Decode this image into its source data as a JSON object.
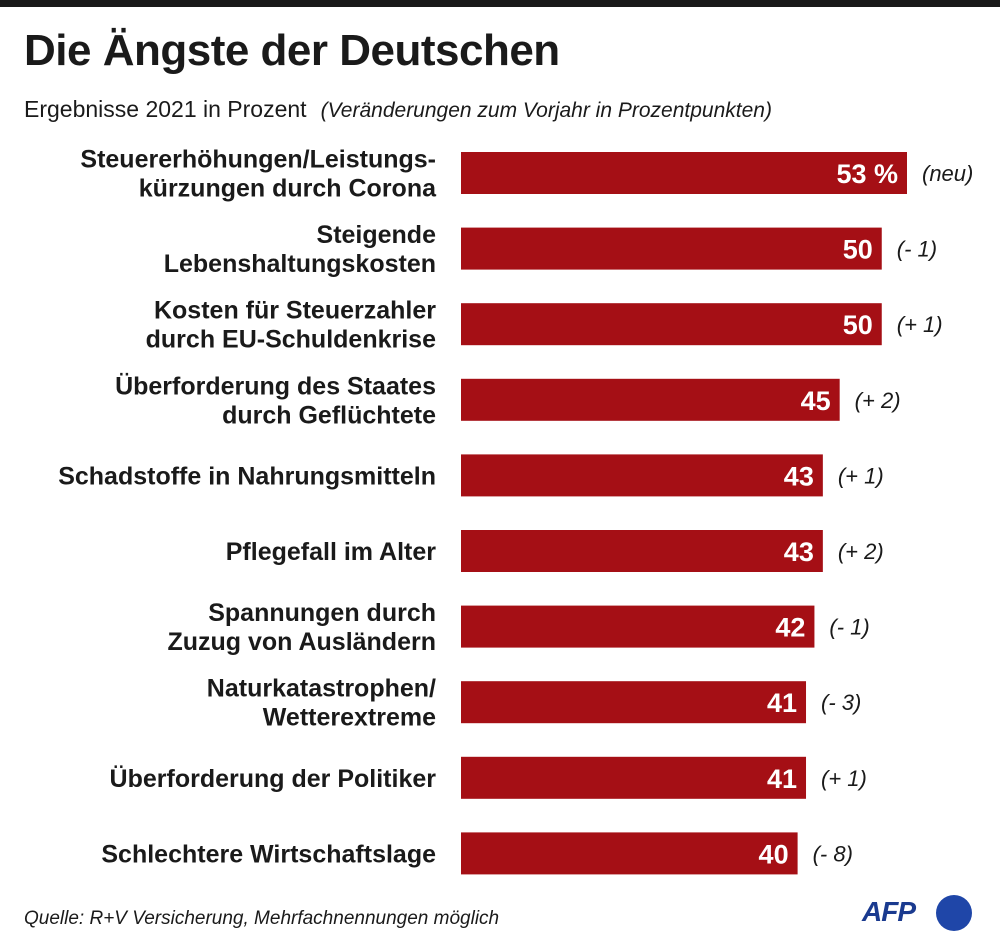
{
  "chart_data": {
    "type": "bar",
    "orientation": "horizontal",
    "title": "Die Ängste der Deutschen",
    "subtitle": "Ergebnisse 2021 in Prozent",
    "subtitle_note": "(Veränderungen zum Vorjahr in Prozentpunkten)",
    "categories": [
      [
        "Steuererhöhungen/Leistungs-",
        "kürzungen durch Corona"
      ],
      [
        "Steigende",
        "Lebenshaltungskosten"
      ],
      [
        "Kosten für Steuerzahler",
        "durch EU-Schuldenkrise"
      ],
      [
        "Überforderung des Staates",
        "durch Geflüchtete"
      ],
      [
        "Schadstoffe in Nahrungsmitteln"
      ],
      [
        "Pflegefall im Alter"
      ],
      [
        "Spannungen durch",
        "Zuzug von Ausländern"
      ],
      [
        "Naturkatastrophen/",
        "Wetterextreme"
      ],
      [
        "Überforderung der Politiker"
      ],
      [
        "Schlechtere Wirtschaftslage"
      ]
    ],
    "values": [
      53,
      50,
      50,
      45,
      43,
      43,
      42,
      41,
      41,
      40
    ],
    "value_labels": [
      "53 %",
      "50",
      "50",
      "45",
      "43",
      "43",
      "42",
      "41",
      "41",
      "40"
    ],
    "changes": [
      "(neu)",
      "(- 1)",
      "(+ 1)",
      "(+ 2)",
      "(+ 1)",
      "(+ 2)",
      "(- 1)",
      "(- 3)",
      "(+ 1)",
      "(- 8)"
    ],
    "bar_color": "#a50f15",
    "grid": false
  },
  "source": "Quelle: R+V Versicherung, Mehrfachnennungen möglich",
  "logo": {
    "text": "AFP",
    "icon": "afp-logo-dot",
    "color": "#1f46a8"
  }
}
